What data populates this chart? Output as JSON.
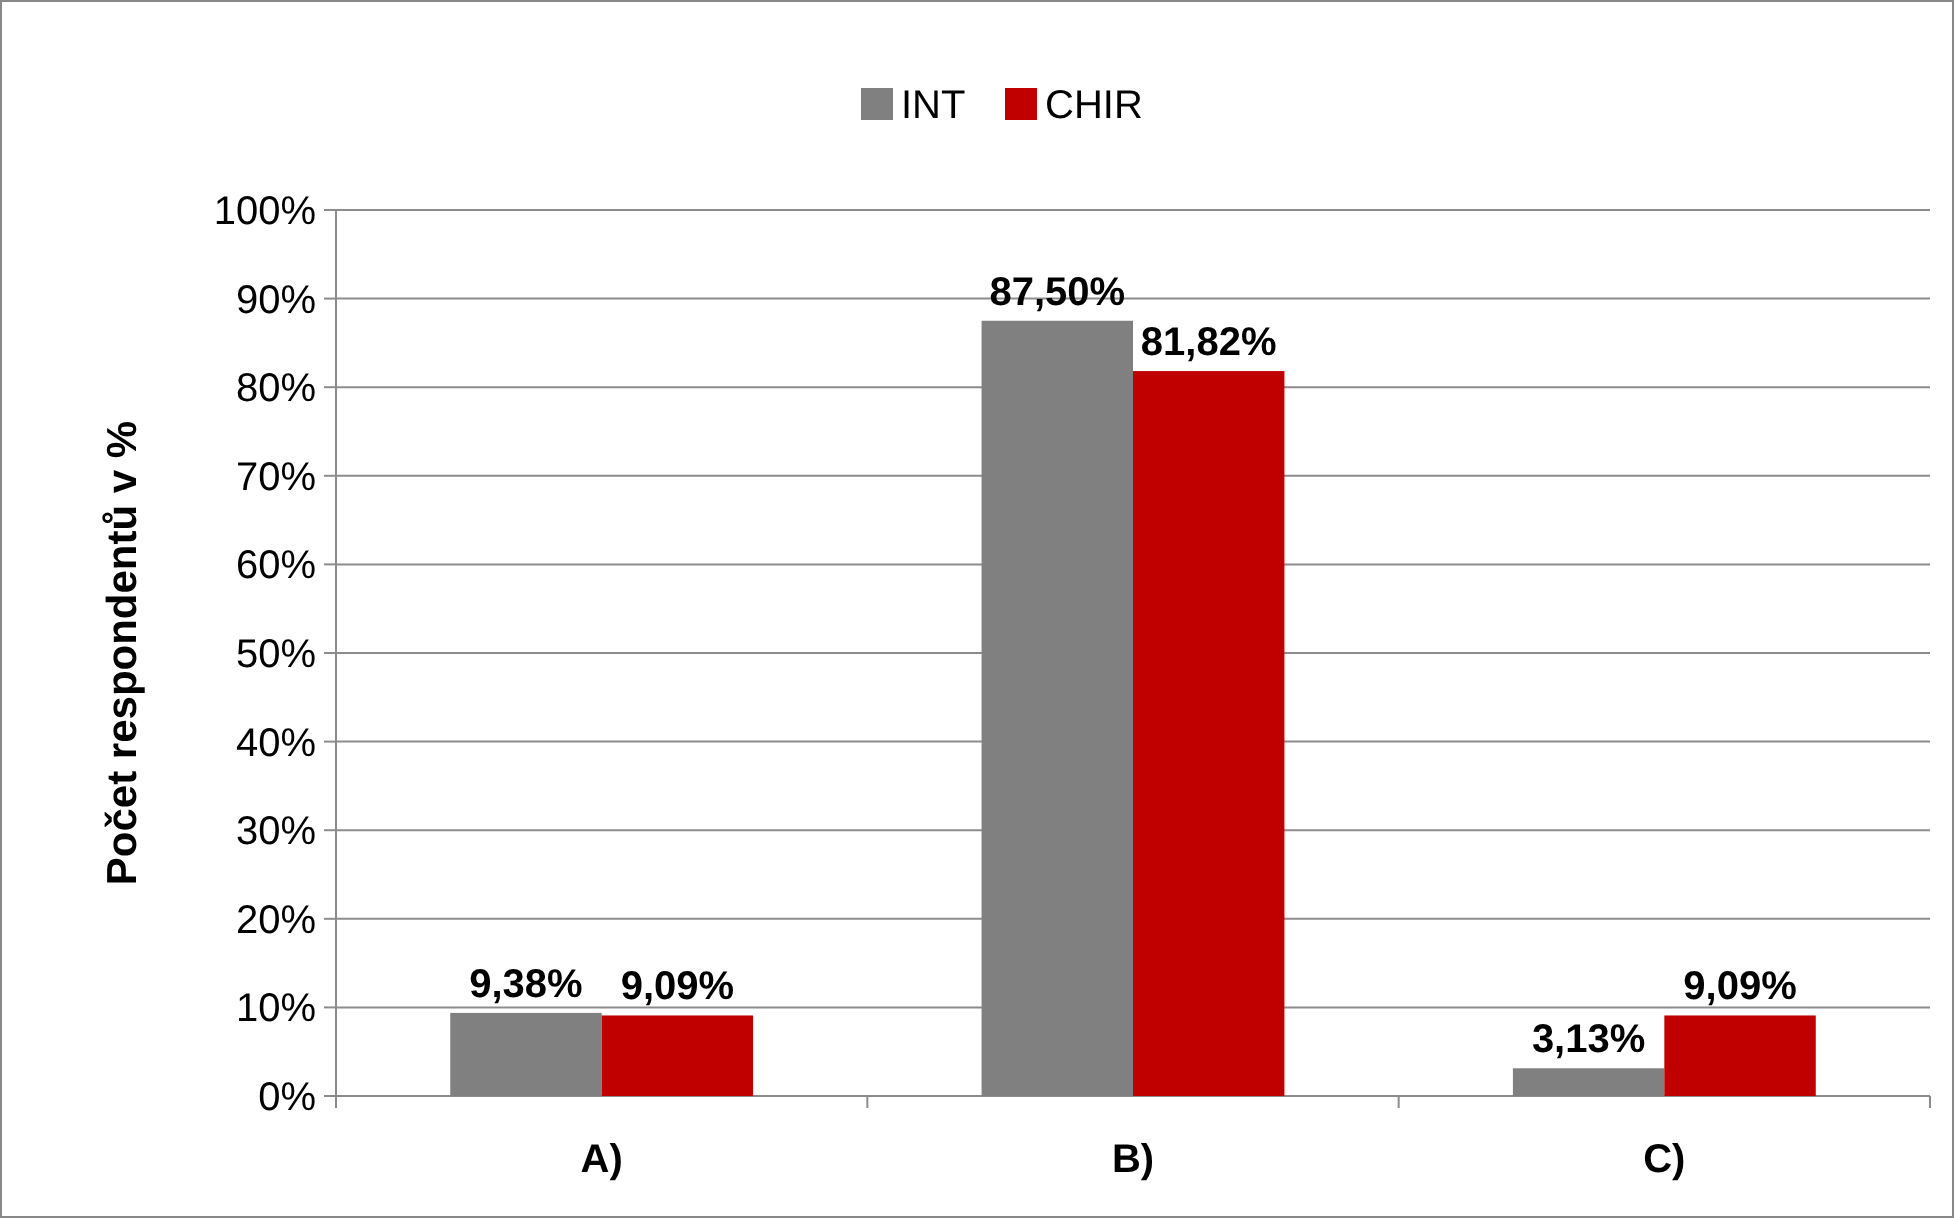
{
  "chart_data": {
    "type": "bar",
    "ylabel": "Počet respondentů v %",
    "categories": [
      "A)",
      "B)",
      "C)"
    ],
    "series": [
      {
        "name": "INT",
        "color": "#808080",
        "values": [
          9.38,
          87.5,
          3.13
        ],
        "value_labels": [
          "9,38%",
          "87,50%",
          "3,13%"
        ]
      },
      {
        "name": "CHIR",
        "color": "#c00000",
        "values": [
          9.09,
          81.82,
          9.09
        ],
        "value_labels": [
          "9,09%",
          "81,82%",
          "9,09%"
        ]
      }
    ],
    "ylim": [
      0,
      100
    ],
    "yticks": [
      {
        "value": 0,
        "label": "0%"
      },
      {
        "value": 10,
        "label": "10%"
      },
      {
        "value": 20,
        "label": "20%"
      },
      {
        "value": 30,
        "label": "30%"
      },
      {
        "value": 40,
        "label": "40%"
      },
      {
        "value": 50,
        "label": "50%"
      },
      {
        "value": 60,
        "label": "60%"
      },
      {
        "value": 70,
        "label": "70%"
      },
      {
        "value": 80,
        "label": "80%"
      },
      {
        "value": 90,
        "label": "90%"
      },
      {
        "value": 100,
        "label": "100%"
      }
    ],
    "grid": "y",
    "legend": "top"
  }
}
